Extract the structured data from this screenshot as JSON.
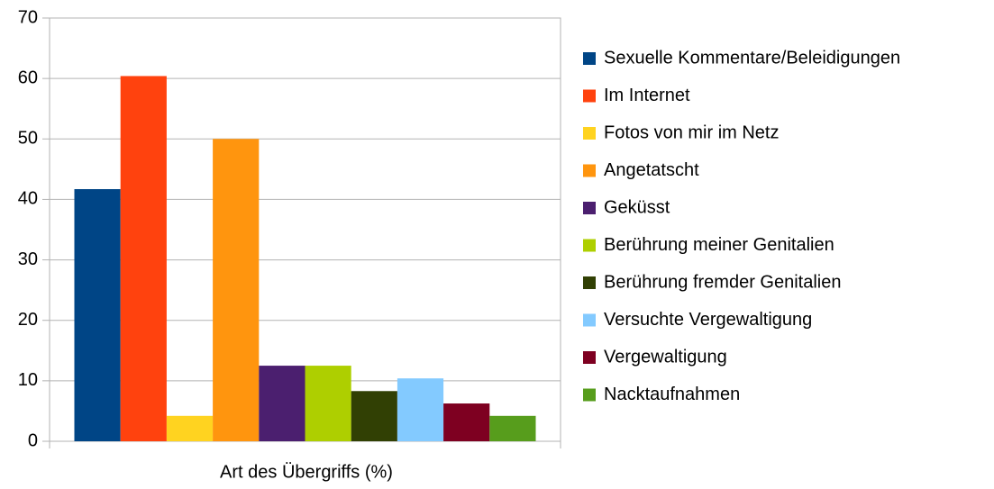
{
  "chart_data": {
    "type": "bar",
    "x_label": "Art des Übergriffs (%)",
    "categories": [
      null
    ],
    "series": [
      {
        "name": "Sexuelle Kommentare/Beleidigungen",
        "color": "#004586",
        "values": [
          41.7
        ]
      },
      {
        "name": "Im Internet",
        "color": "#ff420e",
        "values": [
          60.4
        ]
      },
      {
        "name": "Fotos von mir im Netz",
        "color": "#ffd320",
        "values": [
          4.2
        ]
      },
      {
        "name": "Angetatscht",
        "color": "#ff950e",
        "values": [
          50
        ]
      },
      {
        "name": "Geküsst",
        "color": "#4b1f6f",
        "values": [
          12.5
        ]
      },
      {
        "name": "Berührung meiner Genitalien",
        "color": "#aecf00",
        "values": [
          12.5
        ]
      },
      {
        "name": "Berührung fremder Genitalien",
        "color": "#314004",
        "values": [
          8.3
        ]
      },
      {
        "name": "Versuchte Vergewaltigung",
        "color": "#83caff",
        "values": [
          10.4
        ]
      },
      {
        "name": "Vergewaltigung",
        "color": "#7e0021",
        "values": [
          6.25
        ]
      },
      {
        "name": "Nacktaufnahmen",
        "color": "#579d1c",
        "values": [
          4.2
        ]
      }
    ],
    "ylim": [
      0,
      70
    ],
    "yticks": [
      0,
      10,
      20,
      30,
      40,
      50,
      60,
      70
    ],
    "grid": true,
    "legend": "right"
  }
}
